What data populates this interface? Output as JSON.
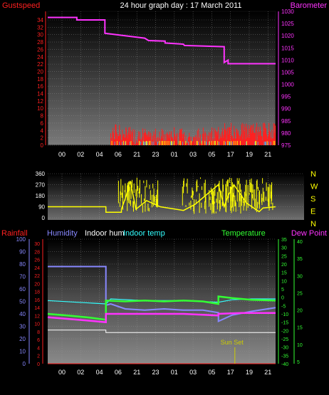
{
  "title": "24 hour graph day : 17 March 2011",
  "colors": {
    "gust": "#ff2020",
    "baro": "#ff33ff",
    "wind_dir": "#ffff00",
    "humidity": "#8888ff",
    "indoor_hum": "#ffffff",
    "indoor_temp": "#33ffff",
    "temperature": "#33ff33",
    "dew_point": "#ff33ff",
    "rainfall": "#ff2020",
    "sunset": "#cccc00"
  },
  "x_tick_labels": [
    "00",
    "02",
    "04",
    "06",
    "21",
    "23",
    "01",
    "03",
    "05",
    "17",
    "19",
    "21"
  ],
  "panels": {
    "wind": {
      "left_label": "Gustspeed",
      "right_label": "Barometer",
      "left_ticks": [
        "0",
        "2",
        "4",
        "6",
        "8",
        "10",
        "12",
        "14",
        "16",
        "18",
        "20",
        "22",
        "24",
        "26",
        "28",
        "30",
        "32",
        "34"
      ],
      "right_ticks": [
        "975",
        "980",
        "985",
        "990",
        "995",
        "1000",
        "1005",
        "1010",
        "1015",
        "1020",
        "1025",
        "1030"
      ]
    },
    "direction": {
      "left_ticks": [
        "0",
        "90",
        "180",
        "270",
        "360"
      ],
      "compass": [
        "N",
        "W",
        "S",
        "E",
        "N"
      ]
    },
    "temp": {
      "label_rainfall": "Rainfall",
      "label_humidity": "Humidity",
      "label_indoor_hum": "Indoor hum",
      "label_indoor_temp": "Indoor temp",
      "label_temperature": "Temperature",
      "label_dew_point": "Dew Point",
      "humidity_ticks": [
        "0",
        "10",
        "20",
        "30",
        "40",
        "50",
        "60",
        "70",
        "80",
        "90",
        "100"
      ],
      "rain_ticks": [
        "0",
        "2",
        "4",
        "6",
        "8",
        "10",
        "12",
        "14",
        "16",
        "18",
        "20",
        "22",
        "24",
        "26",
        "28",
        "30"
      ],
      "temp_ticks": [
        "35",
        "30",
        "25",
        "20",
        "15",
        "10",
        "5",
        "0",
        "-5",
        "-10",
        "-15",
        "-20",
        "-25",
        "-30",
        "-35",
        "-40"
      ],
      "dew_ticks": [
        "40",
        "35",
        "30",
        "25",
        "20",
        "15",
        "10",
        "5"
      ],
      "sunset_label": "Sun Set"
    }
  },
  "chart_data": [
    {
      "type": "line",
      "panel": "wind",
      "series": [
        {
          "name": "Barometer",
          "axis": "right",
          "x": [
            0,
            3,
            3,
            5.9,
            5.9,
            10,
            10.4,
            12.1,
            12.1,
            14,
            14.1,
            18.2,
            18.2,
            18.6,
            18.6,
            23.5
          ],
          "values": [
            1027.5,
            1027.5,
            1026.5,
            1026.5,
            1021,
            1019,
            1018,
            1017.8,
            1017,
            1016.5,
            1016,
            1015.5,
            1009,
            1010,
            1008.5,
            1008.5
          ]
        },
        {
          "name": "Gustspeed",
          "axis": "left",
          "kind": "bars",
          "hour_range": [
            6.5,
            23.5
          ],
          "level": 2.5
        }
      ]
    },
    {
      "type": "line",
      "panel": "direction",
      "series": [
        {
          "name": "Wind direction",
          "x": [
            0,
            6,
            6,
            7.6,
            7.6,
            8.1,
            8.5,
            9.1,
            10.2,
            11.6,
            14.0,
            15.2,
            17.6,
            18.2,
            18.6,
            19.2,
            20.5,
            21.8,
            22.2,
            23.5
          ],
          "values": [
            90,
            90,
            45,
            45,
            70,
            180,
            300,
            70,
            140,
            90,
            60,
            110,
            270,
            90,
            180,
            270,
            120,
            50,
            80,
            90
          ]
        }
      ]
    },
    {
      "type": "line",
      "panel": "temp",
      "series": [
        {
          "name": "Humidity",
          "axis": "humidity",
          "x": [
            0,
            6,
            6,
            6.5,
            8,
            10,
            12,
            14,
            16,
            17.6,
            17.6,
            19,
            21,
            23.5
          ],
          "values": [
            78,
            78,
            47,
            48,
            44,
            43,
            44,
            43,
            43,
            41,
            34,
            39,
            42,
            45
          ]
        },
        {
          "name": "Indoor hum",
          "axis": "humidity",
          "x": [
            0,
            6,
            6,
            23.5
          ],
          "values": [
            27,
            27,
            25,
            25
          ]
        },
        {
          "name": "Indoor temp",
          "axis": "temp",
          "x": [
            0,
            6,
            6.5,
            10,
            14,
            17.6,
            19,
            21,
            23.5
          ],
          "values": [
            -2,
            -4,
            -1,
            -2,
            -2,
            -3,
            -1.5,
            -1,
            -1
          ]
        },
        {
          "name": "Temperature",
          "axis": "temp",
          "x": [
            0,
            2,
            4,
            6,
            6,
            8,
            10,
            12,
            14,
            16,
            17.6,
            17.6,
            19,
            21,
            23.5
          ],
          "values": [
            -10,
            -11,
            -12,
            -13.5,
            -2,
            -2.5,
            -2,
            -2.5,
            -2,
            -2.5,
            -4,
            0.5,
            -0.5,
            -1.5,
            -2
          ]
        },
        {
          "name": "Dew Point",
          "axis": "temp",
          "x": [
            0,
            2,
            4,
            6,
            6,
            10,
            14,
            17.6,
            17.6,
            20,
            23.5
          ],
          "values": [
            -12,
            -13,
            -14,
            -15,
            -10,
            -10,
            -10,
            -11,
            -10,
            -9.5,
            -9.5
          ]
        },
        {
          "name": "Rainfall",
          "axis": "rain",
          "x": [
            0,
            23.5
          ],
          "values": [
            0,
            0
          ]
        }
      ],
      "sunset_hour": 19.3
    }
  ]
}
